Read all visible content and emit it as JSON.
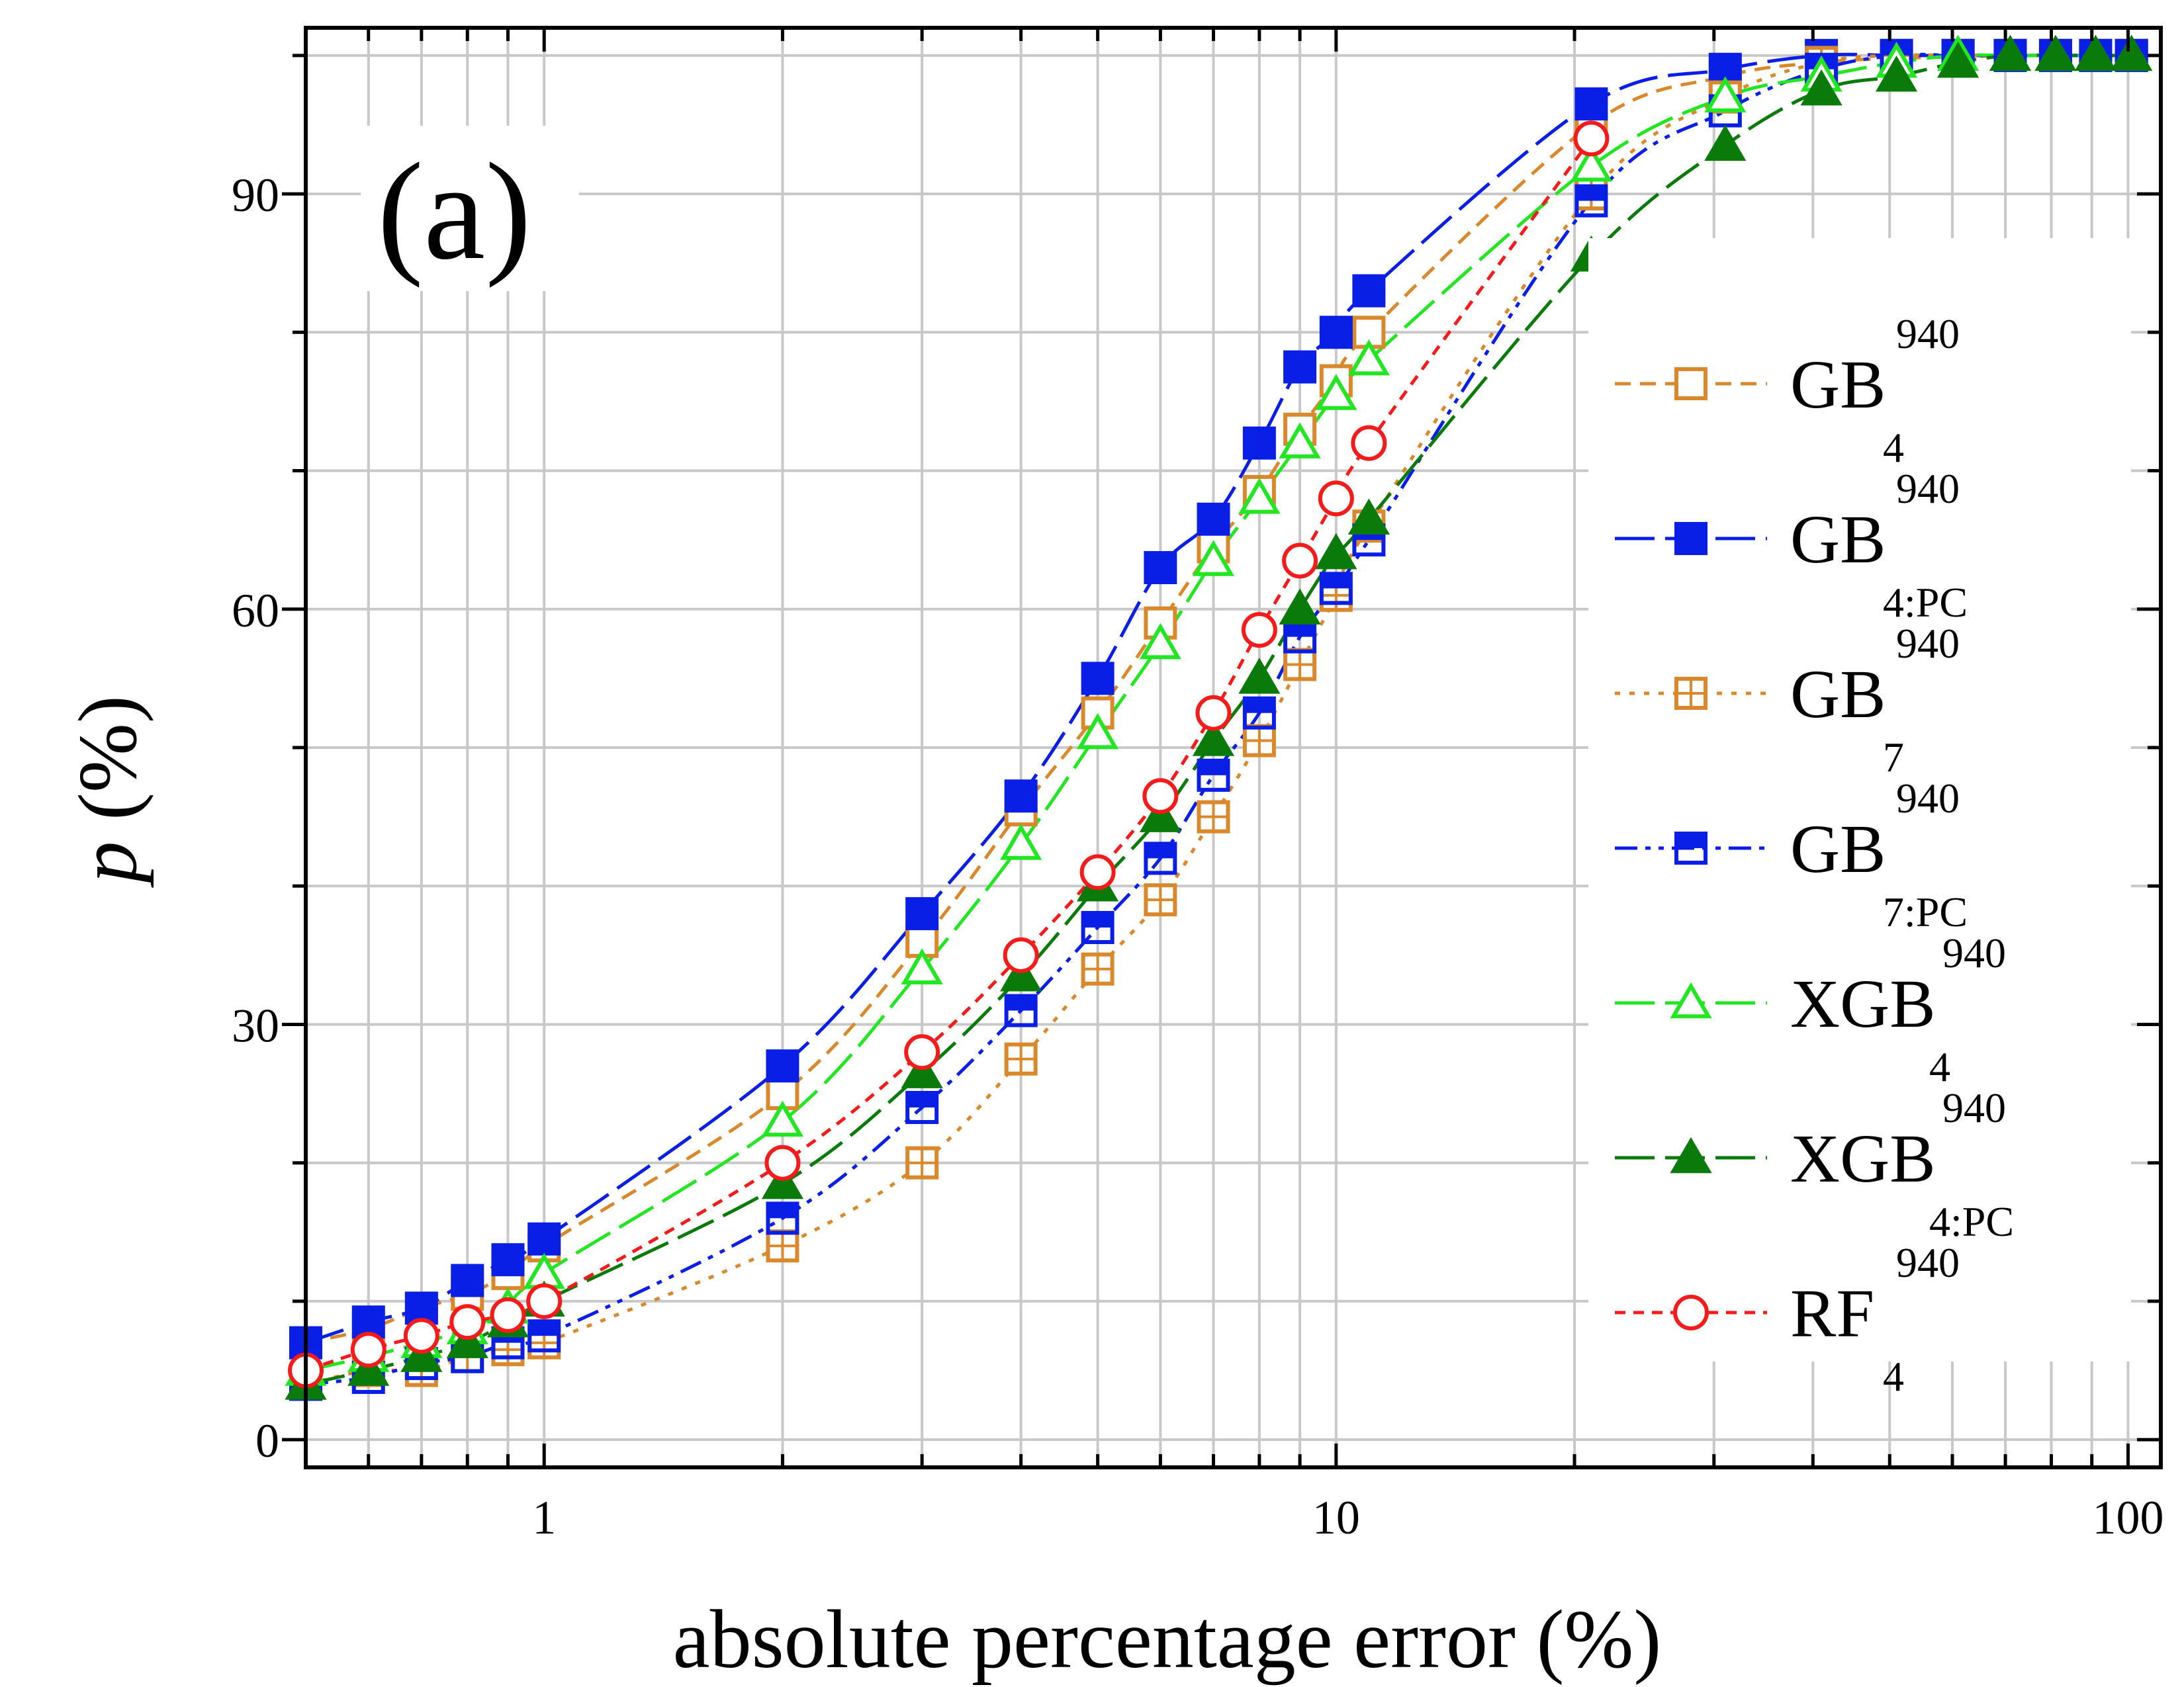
{
  "chart_data": {
    "type": "line",
    "panel_label": "(a)",
    "xlabel": "absolute percentage error (%)",
    "ylabel_italic": "p",
    "ylabel_rest": " (%)",
    "x_scale": "log",
    "xlim": [
      0.5,
      110
    ],
    "ylim": [
      -2,
      102
    ],
    "x_ticks": [
      1,
      10,
      100
    ],
    "x_tick_labels": [
      "1",
      "10",
      "100"
    ],
    "y_ticks": [
      0,
      30,
      60,
      90
    ],
    "y_tick_labels": [
      "0",
      "30",
      "60",
      "90"
    ],
    "grid": true,
    "legend_position": "right",
    "series": [
      {
        "name": "GB",
        "superscript": "940",
        "subscript": "4",
        "color": "#D9882B",
        "dash": "dash",
        "marker": "square-open",
        "x": [
          0.5,
          0.6,
          0.7,
          0.8,
          0.9,
          1,
          2,
          3,
          4,
          5,
          6,
          7,
          8,
          9,
          10,
          11,
          21,
          31,
          41,
          51,
          61,
          71,
          81,
          91,
          101
        ],
        "y": [
          7,
          8,
          9.5,
          10.5,
          12,
          14,
          25,
          36,
          45.5,
          52.5,
          59,
          64.5,
          68.5,
          73,
          76.5,
          80,
          95,
          98.5,
          99.5,
          99.8,
          99.9,
          100,
          100,
          100,
          100
        ]
      },
      {
        "name": "GB",
        "superscript": "940",
        "subscript": "4:PC",
        "color": "#0A1FE6",
        "dash": "longdash",
        "marker": "square-filled",
        "x": [
          0.5,
          0.6,
          0.7,
          0.8,
          0.9,
          1,
          2,
          3,
          4,
          5,
          6,
          7,
          8,
          9,
          10,
          11,
          21,
          31,
          41,
          51,
          61,
          71,
          81,
          91,
          101
        ],
        "y": [
          7,
          8.5,
          9.5,
          11.5,
          13,
          14.5,
          27,
          38,
          46.5,
          55,
          63,
          66.5,
          72,
          77.5,
          80,
          83,
          96.5,
          99,
          100,
          100,
          100,
          100,
          100,
          100,
          100
        ]
      },
      {
        "name": "GB",
        "superscript": "940",
        "subscript": "7",
        "color": "#D9882B",
        "dash": "dot",
        "marker": "square-cross",
        "x": [
          0.5,
          0.6,
          0.7,
          0.8,
          0.9,
          1,
          2,
          3,
          4,
          5,
          6,
          7,
          8,
          9,
          10,
          11,
          21,
          31,
          41,
          51,
          61,
          71,
          81,
          91,
          101
        ],
        "y": [
          4,
          5,
          5,
          6,
          6.5,
          7,
          14,
          20,
          27.5,
          34,
          39,
          45,
          50.5,
          56,
          61,
          66,
          90,
          97,
          99.5,
          100,
          100,
          100,
          100,
          100,
          100
        ]
      },
      {
        "name": "GB",
        "superscript": "940",
        "subscript": "7:PC",
        "color": "#0A1FE6",
        "dash": "dashdotdot",
        "marker": "square-half",
        "x": [
          0.5,
          0.6,
          0.7,
          0.8,
          0.9,
          1,
          2,
          3,
          4,
          5,
          6,
          7,
          8,
          9,
          10,
          11,
          21,
          31,
          41,
          51,
          61,
          71,
          81,
          91,
          101
        ],
        "y": [
          4,
          4.5,
          5.5,
          6,
          7,
          7.5,
          16,
          24,
          31,
          37,
          42,
          48,
          52.5,
          58,
          61.5,
          65,
          89.5,
          96,
          99,
          100,
          100,
          100,
          100,
          100,
          100
        ]
      },
      {
        "name": "XGB",
        "superscript": "940",
        "subscript": "4",
        "color": "#22E622",
        "dash": "longdash",
        "marker": "triangle-open",
        "x": [
          0.5,
          0.6,
          0.7,
          0.8,
          0.9,
          1,
          2,
          3,
          4,
          5,
          6,
          7,
          8,
          9,
          10,
          11,
          21,
          31,
          41,
          51,
          61,
          71,
          81,
          91,
          101
        ],
        "y": [
          5,
          6,
          7,
          8,
          9.5,
          12,
          23,
          34,
          43,
          51,
          57.5,
          63.5,
          68,
          72,
          75.5,
          78,
          92,
          97,
          98.5,
          99.5,
          100,
          100,
          100,
          100,
          100
        ]
      },
      {
        "name": "XGB",
        "superscript": "940",
        "subscript": "4:PC",
        "color": "#0A7A0A",
        "dash": "longdash",
        "marker": "triangle-filled",
        "x": [
          0.5,
          0.6,
          0.7,
          0.8,
          0.9,
          1,
          2,
          3,
          4,
          5,
          6,
          7,
          8,
          9,
          10,
          11,
          21,
          31,
          41,
          51,
          61,
          71,
          81,
          91,
          101
        ],
        "y": [
          4,
          5,
          6,
          7,
          8.5,
          10,
          18.5,
          26.5,
          33.5,
          40,
          45,
          50.5,
          55,
          60,
          64,
          66.5,
          85.5,
          93.5,
          97.5,
          98.5,
          99.5,
          100,
          100,
          100,
          100
        ]
      },
      {
        "name": "RF",
        "superscript": "940",
        "subscript": "4",
        "color": "#F51B1B",
        "dash": "shortdash",
        "marker": "circle-open",
        "x": [
          0.5,
          0.6,
          0.7,
          0.8,
          0.9,
          1,
          2,
          3,
          4,
          5,
          6,
          7,
          8,
          9,
          10,
          11,
          21
        ],
        "y": [
          5,
          6.5,
          7.5,
          8.5,
          9,
          10,
          20,
          28,
          35,
          41,
          46.5,
          52.5,
          58.5,
          63.5,
          68,
          72,
          94
        ]
      }
    ]
  }
}
